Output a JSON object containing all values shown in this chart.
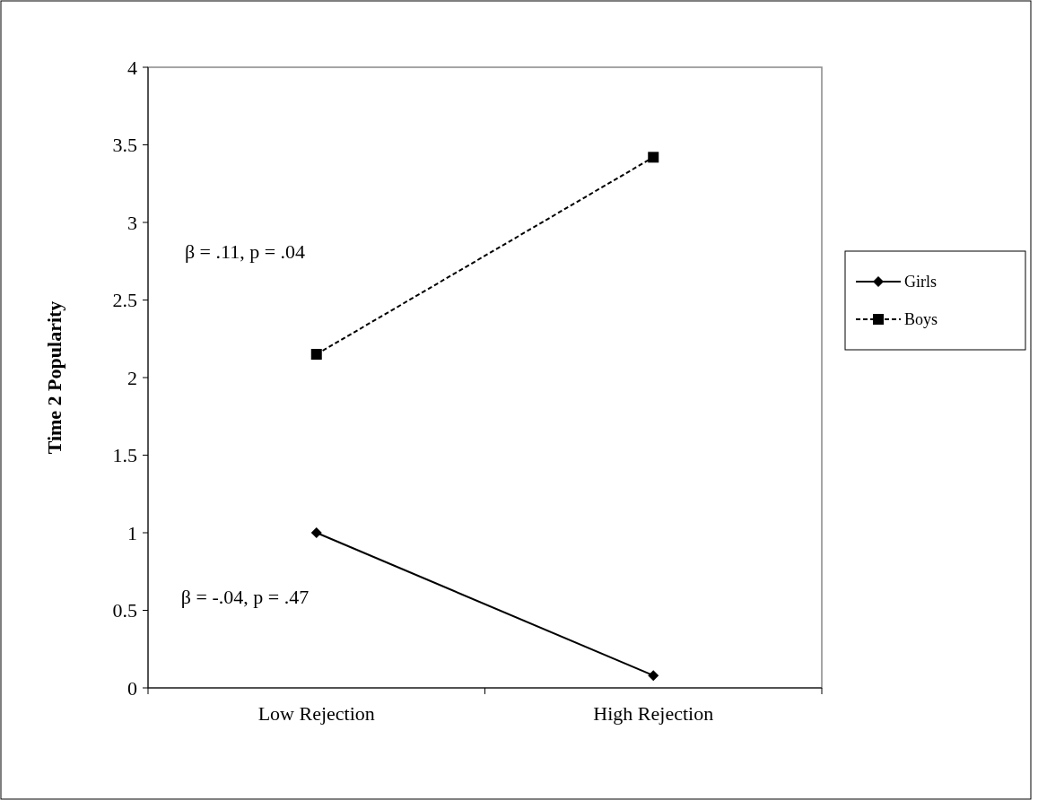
{
  "chart_data": {
    "type": "line",
    "ylabel": "Time 2 Popularity",
    "categories": [
      "Low Rejection",
      "High Rejection"
    ],
    "series": [
      {
        "name": "Girls",
        "color": "#000000",
        "values": [
          1.0,
          0.08
        ],
        "marker": "diamond",
        "line_style": "solid"
      },
      {
        "name": "Boys",
        "color": "#000000",
        "values": [
          2.15,
          3.42
        ],
        "marker": "square",
        "line_style": "dashed"
      }
    ],
    "ylim": [
      0,
      4
    ],
    "yticks": [
      0,
      0.5,
      1,
      1.5,
      2,
      2.5,
      3,
      3.5,
      4
    ],
    "grid": false,
    "legend": "right",
    "annotations": [
      "β = .11, p = .04",
      "β = -.04, p = .47"
    ]
  }
}
